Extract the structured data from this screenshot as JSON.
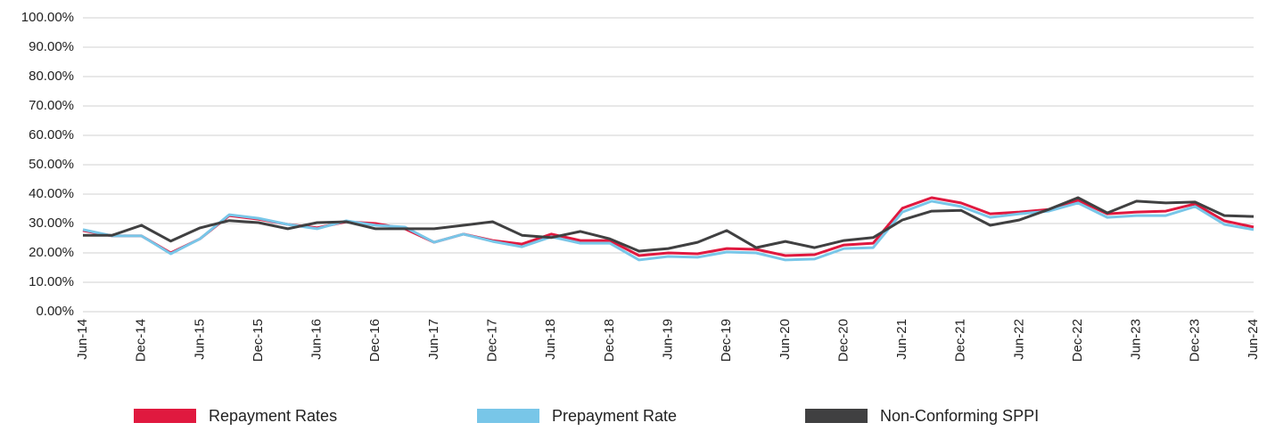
{
  "chart_data": {
    "type": "line",
    "categories": [
      "Jun-14",
      null,
      "Dec-14",
      null,
      "Jun-15",
      null,
      "Dec-15",
      null,
      "Jun-16",
      null,
      "Dec-16",
      null,
      "Jun-17",
      null,
      "Dec-17",
      null,
      "Jun-18",
      null,
      "Dec-18",
      null,
      "Jun-19",
      null,
      "Dec-19",
      null,
      "Jun-20",
      null,
      "Dec-20",
      null,
      "Jun-21",
      null,
      "Dec-21",
      null,
      "Jun-22",
      null,
      "Dec-22",
      null,
      "Jun-23",
      null,
      "Dec-23",
      null,
      "Jun-24"
    ],
    "series": [
      {
        "name": "Repayment Rates",
        "color": "#e0193f",
        "values": [
          27.6,
          25.8,
          25.8,
          20,
          24.8,
          32.7,
          31.5,
          29.7,
          28.5,
          30.6,
          30,
          28.2,
          23.6,
          26.4,
          24.2,
          23,
          26.4,
          24.2,
          24.2,
          19.1,
          20,
          19.7,
          21.5,
          21.2,
          19.1,
          19.4,
          22.7,
          23.3,
          35.2,
          38.8,
          37,
          33.3,
          33.9,
          34.8,
          37.9,
          33.3,
          33.9,
          34.2,
          36.7,
          30.9,
          28.8
        ]
      },
      {
        "name": "Prepayment Rate",
        "color": "#78c6e8",
        "values": [
          27.9,
          25.8,
          25.8,
          19.7,
          24.8,
          33,
          31.8,
          29.7,
          28.2,
          30.9,
          29.4,
          28.8,
          23.6,
          26.4,
          23.9,
          22.1,
          25.5,
          23.3,
          23.3,
          17.6,
          18.8,
          18.5,
          20.3,
          20,
          17.6,
          17.9,
          21.5,
          21.8,
          33.9,
          37.6,
          35.8,
          32.1,
          33.3,
          34.2,
          37,
          32.1,
          32.7,
          32.7,
          35.8,
          29.7,
          27.9
        ]
      },
      {
        "name": "Non-Conforming SPPI",
        "color": "#404041",
        "values": [
          26,
          26,
          29.4,
          24,
          28.5,
          31,
          30.3,
          28.2,
          30.3,
          30.6,
          28.2,
          28.2,
          28.2,
          29.4,
          30.6,
          26,
          25.2,
          27.3,
          24.8,
          20.6,
          21.5,
          23.6,
          27.6,
          21.8,
          23.9,
          21.8,
          24.2,
          25.2,
          31.2,
          34.2,
          34.5,
          29.4,
          31.2,
          34.8,
          38.8,
          33.6,
          37.6,
          37,
          37.3,
          32.7,
          32.4
        ]
      }
    ],
    "ylim": [
      0,
      100
    ],
    "yticks": [
      {
        "value": 0,
        "label": "0.00%"
      },
      {
        "value": 10,
        "label": "10.00%"
      },
      {
        "value": 20,
        "label": "20.00%"
      },
      {
        "value": 30,
        "label": "30.00%"
      },
      {
        "value": 40,
        "label": "40.00%"
      },
      {
        "value": 50,
        "label": "50.00%"
      },
      {
        "value": 60,
        "label": "60.00%"
      },
      {
        "value": 70,
        "label": "70.00%"
      },
      {
        "value": 80,
        "label": "80.00%"
      },
      {
        "value": 90,
        "label": "90.00%"
      },
      {
        "value": 100,
        "label": "100.00%"
      }
    ],
    "grid": true,
    "legend": "bottom"
  }
}
